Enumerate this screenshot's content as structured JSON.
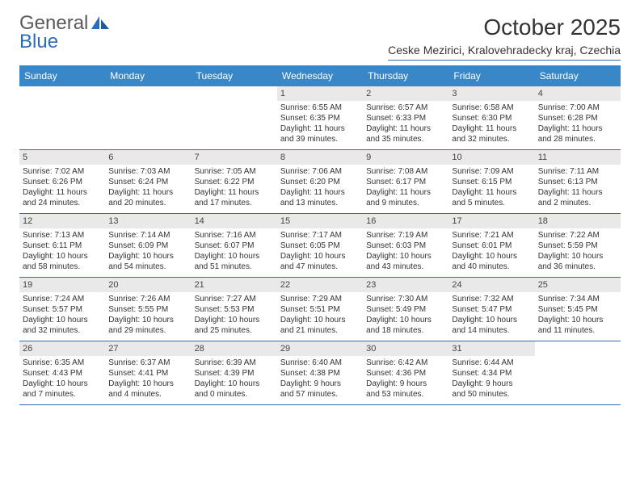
{
  "logo": {
    "general": "General",
    "blue": "Blue"
  },
  "colors": {
    "header_bg": "#3a87c8",
    "accent": "#2a6db8",
    "datebar_bg": "#e9e9e9",
    "text": "#333333",
    "logo_general": "#5a5a5a",
    "logo_blue": "#2a6db8",
    "background": "#ffffff"
  },
  "title": "October 2025",
  "subtitle": "Ceske Mezirici, Kralovehradecky kraj, Czechia",
  "day_headers": [
    "Sunday",
    "Monday",
    "Tuesday",
    "Wednesday",
    "Thursday",
    "Friday",
    "Saturday"
  ],
  "weeks": [
    [
      {
        "date": "",
        "sunrise": "",
        "sunset": "",
        "daylight1": "",
        "daylight2": ""
      },
      {
        "date": "",
        "sunrise": "",
        "sunset": "",
        "daylight1": "",
        "daylight2": ""
      },
      {
        "date": "",
        "sunrise": "",
        "sunset": "",
        "daylight1": "",
        "daylight2": ""
      },
      {
        "date": "1",
        "sunrise": "Sunrise: 6:55 AM",
        "sunset": "Sunset: 6:35 PM",
        "daylight1": "Daylight: 11 hours",
        "daylight2": "and 39 minutes."
      },
      {
        "date": "2",
        "sunrise": "Sunrise: 6:57 AM",
        "sunset": "Sunset: 6:33 PM",
        "daylight1": "Daylight: 11 hours",
        "daylight2": "and 35 minutes."
      },
      {
        "date": "3",
        "sunrise": "Sunrise: 6:58 AM",
        "sunset": "Sunset: 6:30 PM",
        "daylight1": "Daylight: 11 hours",
        "daylight2": "and 32 minutes."
      },
      {
        "date": "4",
        "sunrise": "Sunrise: 7:00 AM",
        "sunset": "Sunset: 6:28 PM",
        "daylight1": "Daylight: 11 hours",
        "daylight2": "and 28 minutes."
      }
    ],
    [
      {
        "date": "5",
        "sunrise": "Sunrise: 7:02 AM",
        "sunset": "Sunset: 6:26 PM",
        "daylight1": "Daylight: 11 hours",
        "daylight2": "and 24 minutes."
      },
      {
        "date": "6",
        "sunrise": "Sunrise: 7:03 AM",
        "sunset": "Sunset: 6:24 PM",
        "daylight1": "Daylight: 11 hours",
        "daylight2": "and 20 minutes."
      },
      {
        "date": "7",
        "sunrise": "Sunrise: 7:05 AM",
        "sunset": "Sunset: 6:22 PM",
        "daylight1": "Daylight: 11 hours",
        "daylight2": "and 17 minutes."
      },
      {
        "date": "8",
        "sunrise": "Sunrise: 7:06 AM",
        "sunset": "Sunset: 6:20 PM",
        "daylight1": "Daylight: 11 hours",
        "daylight2": "and 13 minutes."
      },
      {
        "date": "9",
        "sunrise": "Sunrise: 7:08 AM",
        "sunset": "Sunset: 6:17 PM",
        "daylight1": "Daylight: 11 hours",
        "daylight2": "and 9 minutes."
      },
      {
        "date": "10",
        "sunrise": "Sunrise: 7:09 AM",
        "sunset": "Sunset: 6:15 PM",
        "daylight1": "Daylight: 11 hours",
        "daylight2": "and 5 minutes."
      },
      {
        "date": "11",
        "sunrise": "Sunrise: 7:11 AM",
        "sunset": "Sunset: 6:13 PM",
        "daylight1": "Daylight: 11 hours",
        "daylight2": "and 2 minutes."
      }
    ],
    [
      {
        "date": "12",
        "sunrise": "Sunrise: 7:13 AM",
        "sunset": "Sunset: 6:11 PM",
        "daylight1": "Daylight: 10 hours",
        "daylight2": "and 58 minutes."
      },
      {
        "date": "13",
        "sunrise": "Sunrise: 7:14 AM",
        "sunset": "Sunset: 6:09 PM",
        "daylight1": "Daylight: 10 hours",
        "daylight2": "and 54 minutes."
      },
      {
        "date": "14",
        "sunrise": "Sunrise: 7:16 AM",
        "sunset": "Sunset: 6:07 PM",
        "daylight1": "Daylight: 10 hours",
        "daylight2": "and 51 minutes."
      },
      {
        "date": "15",
        "sunrise": "Sunrise: 7:17 AM",
        "sunset": "Sunset: 6:05 PM",
        "daylight1": "Daylight: 10 hours",
        "daylight2": "and 47 minutes."
      },
      {
        "date": "16",
        "sunrise": "Sunrise: 7:19 AM",
        "sunset": "Sunset: 6:03 PM",
        "daylight1": "Daylight: 10 hours",
        "daylight2": "and 43 minutes."
      },
      {
        "date": "17",
        "sunrise": "Sunrise: 7:21 AM",
        "sunset": "Sunset: 6:01 PM",
        "daylight1": "Daylight: 10 hours",
        "daylight2": "and 40 minutes."
      },
      {
        "date": "18",
        "sunrise": "Sunrise: 7:22 AM",
        "sunset": "Sunset: 5:59 PM",
        "daylight1": "Daylight: 10 hours",
        "daylight2": "and 36 minutes."
      }
    ],
    [
      {
        "date": "19",
        "sunrise": "Sunrise: 7:24 AM",
        "sunset": "Sunset: 5:57 PM",
        "daylight1": "Daylight: 10 hours",
        "daylight2": "and 32 minutes."
      },
      {
        "date": "20",
        "sunrise": "Sunrise: 7:26 AM",
        "sunset": "Sunset: 5:55 PM",
        "daylight1": "Daylight: 10 hours",
        "daylight2": "and 29 minutes."
      },
      {
        "date": "21",
        "sunrise": "Sunrise: 7:27 AM",
        "sunset": "Sunset: 5:53 PM",
        "daylight1": "Daylight: 10 hours",
        "daylight2": "and 25 minutes."
      },
      {
        "date": "22",
        "sunrise": "Sunrise: 7:29 AM",
        "sunset": "Sunset: 5:51 PM",
        "daylight1": "Daylight: 10 hours",
        "daylight2": "and 21 minutes."
      },
      {
        "date": "23",
        "sunrise": "Sunrise: 7:30 AM",
        "sunset": "Sunset: 5:49 PM",
        "daylight1": "Daylight: 10 hours",
        "daylight2": "and 18 minutes."
      },
      {
        "date": "24",
        "sunrise": "Sunrise: 7:32 AM",
        "sunset": "Sunset: 5:47 PM",
        "daylight1": "Daylight: 10 hours",
        "daylight2": "and 14 minutes."
      },
      {
        "date": "25",
        "sunrise": "Sunrise: 7:34 AM",
        "sunset": "Sunset: 5:45 PM",
        "daylight1": "Daylight: 10 hours",
        "daylight2": "and 11 minutes."
      }
    ],
    [
      {
        "date": "26",
        "sunrise": "Sunrise: 6:35 AM",
        "sunset": "Sunset: 4:43 PM",
        "daylight1": "Daylight: 10 hours",
        "daylight2": "and 7 minutes."
      },
      {
        "date": "27",
        "sunrise": "Sunrise: 6:37 AM",
        "sunset": "Sunset: 4:41 PM",
        "daylight1": "Daylight: 10 hours",
        "daylight2": "and 4 minutes."
      },
      {
        "date": "28",
        "sunrise": "Sunrise: 6:39 AM",
        "sunset": "Sunset: 4:39 PM",
        "daylight1": "Daylight: 10 hours",
        "daylight2": "and 0 minutes."
      },
      {
        "date": "29",
        "sunrise": "Sunrise: 6:40 AM",
        "sunset": "Sunset: 4:38 PM",
        "daylight1": "Daylight: 9 hours",
        "daylight2": "and 57 minutes."
      },
      {
        "date": "30",
        "sunrise": "Sunrise: 6:42 AM",
        "sunset": "Sunset: 4:36 PM",
        "daylight1": "Daylight: 9 hours",
        "daylight2": "and 53 minutes."
      },
      {
        "date": "31",
        "sunrise": "Sunrise: 6:44 AM",
        "sunset": "Sunset: 4:34 PM",
        "daylight1": "Daylight: 9 hours",
        "daylight2": "and 50 minutes."
      },
      {
        "date": "",
        "sunrise": "",
        "sunset": "",
        "daylight1": "",
        "daylight2": ""
      }
    ]
  ]
}
